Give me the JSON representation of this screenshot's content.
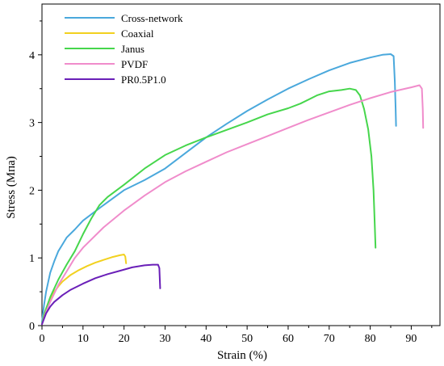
{
  "chart_data": {
    "type": "line",
    "xlabel": "Strain (%)",
    "ylabel": "Stress (Mпa)",
    "xlim": [
      0,
      97
    ],
    "ylim": [
      0,
      4.75
    ],
    "xticks": [
      "0",
      "10",
      "20",
      "30",
      "40",
      "50",
      "60",
      "70",
      "80",
      "90"
    ],
    "yticks": [
      "0",
      "1",
      "2",
      "3",
      "4"
    ],
    "legend_position": "top-left",
    "grid": false,
    "series": [
      {
        "name": "Cross-network",
        "color": "#4aa8dc",
        "points": [
          [
            0,
            0.05
          ],
          [
            0.5,
            0.3
          ],
          [
            1,
            0.5
          ],
          [
            2,
            0.78
          ],
          [
            3,
            0.95
          ],
          [
            4,
            1.1
          ],
          [
            5,
            1.2
          ],
          [
            6,
            1.3
          ],
          [
            8,
            1.42
          ],
          [
            10,
            1.55
          ],
          [
            15,
            1.78
          ],
          [
            20,
            2.0
          ],
          [
            25,
            2.15
          ],
          [
            30,
            2.32
          ],
          [
            35,
            2.55
          ],
          [
            40,
            2.78
          ],
          [
            45,
            2.98
          ],
          [
            50,
            3.17
          ],
          [
            55,
            3.34
          ],
          [
            60,
            3.5
          ],
          [
            65,
            3.64
          ],
          [
            70,
            3.77
          ],
          [
            75,
            3.88
          ],
          [
            80,
            3.96
          ],
          [
            83,
            4.0
          ],
          [
            85,
            4.01
          ],
          [
            85.7,
            3.98
          ],
          [
            86,
            3.6
          ],
          [
            86.2,
            3.2
          ],
          [
            86.3,
            2.95
          ]
        ]
      },
      {
        "name": "Coaxial",
        "color": "#f2d11f",
        "points": [
          [
            0,
            0.02
          ],
          [
            0.5,
            0.15
          ],
          [
            1,
            0.25
          ],
          [
            2,
            0.4
          ],
          [
            3,
            0.5
          ],
          [
            4,
            0.58
          ],
          [
            5,
            0.65
          ],
          [
            7,
            0.75
          ],
          [
            9,
            0.82
          ],
          [
            11,
            0.88
          ],
          [
            13,
            0.93
          ],
          [
            15,
            0.97
          ],
          [
            17,
            1.01
          ],
          [
            19,
            1.04
          ],
          [
            20,
            1.05
          ],
          [
            20.3,
            1.02
          ],
          [
            20.5,
            0.92
          ]
        ]
      },
      {
        "name": "Janus",
        "color": "#46d64c",
        "points": [
          [
            0,
            0.03
          ],
          [
            1,
            0.25
          ],
          [
            2,
            0.42
          ],
          [
            4,
            0.68
          ],
          [
            6,
            0.9
          ],
          [
            8,
            1.1
          ],
          [
            10,
            1.35
          ],
          [
            12,
            1.58
          ],
          [
            14,
            1.78
          ],
          [
            16,
            1.9
          ],
          [
            20,
            2.08
          ],
          [
            25,
            2.32
          ],
          [
            30,
            2.52
          ],
          [
            35,
            2.66
          ],
          [
            40,
            2.78
          ],
          [
            45,
            2.89
          ],
          [
            50,
            3.0
          ],
          [
            55,
            3.12
          ],
          [
            60,
            3.21
          ],
          [
            63,
            3.28
          ],
          [
            67,
            3.4
          ],
          [
            70,
            3.46
          ],
          [
            73,
            3.48
          ],
          [
            75,
            3.5
          ],
          [
            76.5,
            3.48
          ],
          [
            77.5,
            3.4
          ],
          [
            78.5,
            3.2
          ],
          [
            79.5,
            2.9
          ],
          [
            80.3,
            2.5
          ],
          [
            80.8,
            2.0
          ],
          [
            81.1,
            1.5
          ],
          [
            81.3,
            1.15
          ]
        ]
      },
      {
        "name": "PVDF",
        "color": "#f08ccb",
        "points": [
          [
            0,
            0.02
          ],
          [
            1,
            0.2
          ],
          [
            2,
            0.35
          ],
          [
            4,
            0.6
          ],
          [
            6,
            0.8
          ],
          [
            8,
            1.0
          ],
          [
            10,
            1.15
          ],
          [
            15,
            1.45
          ],
          [
            20,
            1.7
          ],
          [
            25,
            1.92
          ],
          [
            30,
            2.12
          ],
          [
            35,
            2.28
          ],
          [
            40,
            2.42
          ],
          [
            45,
            2.56
          ],
          [
            50,
            2.68
          ],
          [
            55,
            2.8
          ],
          [
            60,
            2.92
          ],
          [
            65,
            3.04
          ],
          [
            70,
            3.15
          ],
          [
            75,
            3.26
          ],
          [
            80,
            3.36
          ],
          [
            85,
            3.45
          ],
          [
            90,
            3.52
          ],
          [
            92,
            3.55
          ],
          [
            92.6,
            3.5
          ],
          [
            92.8,
            3.2
          ],
          [
            92.9,
            2.92
          ]
        ]
      },
      {
        "name": "PR0.5P1.0",
        "color": "#6a1fb8",
        "points": [
          [
            0,
            0.02
          ],
          [
            0.5,
            0.1
          ],
          [
            1,
            0.18
          ],
          [
            2,
            0.28
          ],
          [
            3,
            0.35
          ],
          [
            5,
            0.45
          ],
          [
            7,
            0.53
          ],
          [
            10,
            0.62
          ],
          [
            13,
            0.7
          ],
          [
            16,
            0.76
          ],
          [
            19,
            0.81
          ],
          [
            22,
            0.86
          ],
          [
            25,
            0.89
          ],
          [
            27,
            0.9
          ],
          [
            28.3,
            0.9
          ],
          [
            28.6,
            0.85
          ],
          [
            28.7,
            0.7
          ],
          [
            28.8,
            0.55
          ]
        ]
      }
    ]
  }
}
